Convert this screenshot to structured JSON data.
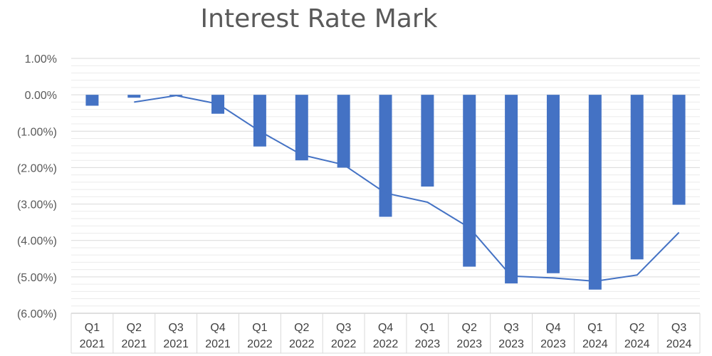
{
  "chart_data": {
    "type": "bar",
    "title": "Interest Rate Mark",
    "categories": [
      [
        "Q1",
        "2021"
      ],
      [
        "Q2",
        "2021"
      ],
      [
        "Q3",
        "2021"
      ],
      [
        "Q4",
        "2021"
      ],
      [
        "Q1",
        "2022"
      ],
      [
        "Q2",
        "2022"
      ],
      [
        "Q3",
        "2022"
      ],
      [
        "Q4",
        "2022"
      ],
      [
        "Q1",
        "2023"
      ],
      [
        "Q2",
        "2023"
      ],
      [
        "Q3",
        "2023"
      ],
      [
        "Q4",
        "2023"
      ],
      [
        "Q1",
        "2024"
      ],
      [
        "Q2",
        "2024"
      ],
      [
        "Q3",
        "2024"
      ]
    ],
    "series": [
      {
        "kind": "bar",
        "values": [
          -0.3,
          -0.08,
          0.0,
          -0.52,
          -1.42,
          -1.8,
          -2.0,
          -3.35,
          -2.52,
          -4.72,
          -5.18,
          -4.9,
          -5.35,
          -4.52,
          -3.02
        ]
      },
      {
        "kind": "line",
        "values": [
          null,
          -0.2,
          -0.02,
          -0.25,
          -1.0,
          -1.65,
          -1.92,
          -2.7,
          -2.95,
          -3.65,
          -4.98,
          -5.03,
          -5.12,
          -4.95,
          -3.78
        ]
      }
    ],
    "ylim": [
      -6.0,
      1.0
    ],
    "yticks": [
      {
        "value": 1,
        "label": "1.00%"
      },
      {
        "value": 0,
        "label": "0.00%"
      },
      {
        "value": -1,
        "label": "(1.00%)"
      },
      {
        "value": -2,
        "label": "(2.00%)"
      },
      {
        "value": -3,
        "label": "(3.00%)"
      },
      {
        "value": -4,
        "label": "(4.00%)"
      },
      {
        "value": -5,
        "label": "(5.00%)"
      },
      {
        "value": -6,
        "label": "(6.00%)"
      }
    ],
    "grid": true,
    "colors": {
      "bar": "#4472C4",
      "line": "#4472C4",
      "grid_major": "#D9D9D9",
      "grid_minor": "#EBEBEB",
      "text": "#595959"
    }
  }
}
